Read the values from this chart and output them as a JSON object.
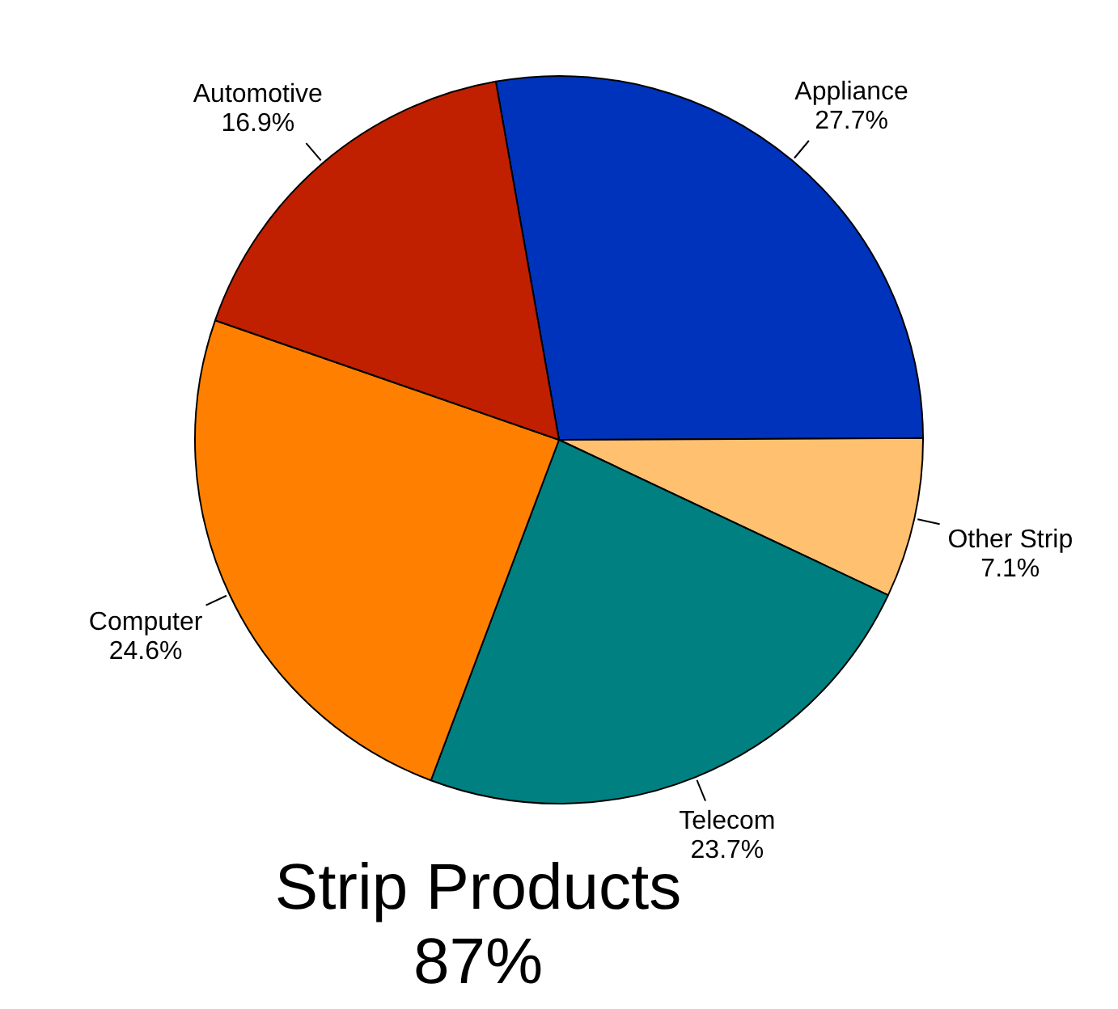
{
  "chart_data": {
    "type": "pie",
    "title": "Strip Products",
    "subtitle": "87%",
    "categories": [
      "Appliance",
      "Other Strip",
      "Telecom",
      "Computer",
      "Automotive"
    ],
    "values": [
      27.7,
      7.1,
      23.7,
      24.6,
      16.9
    ],
    "value_labels": [
      "27.7%",
      "7.1%",
      "23.7%",
      "24.6%",
      "16.9%"
    ],
    "colors": [
      "#0033bb",
      "#ffc070",
      "#008080",
      "#ff8000",
      "#c02000"
    ],
    "legend": false
  }
}
